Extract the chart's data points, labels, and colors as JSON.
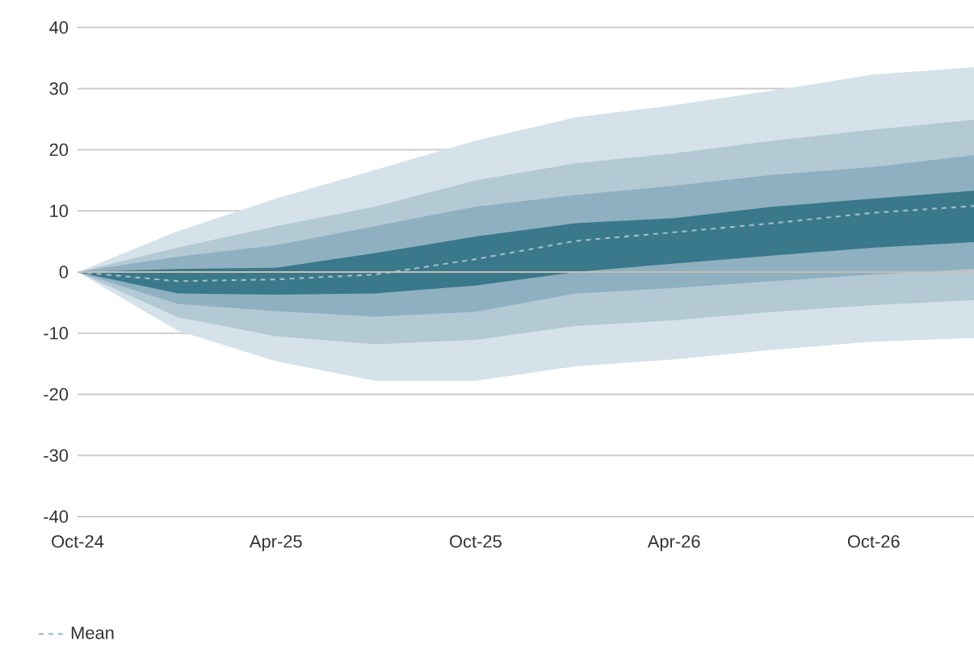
{
  "chart_data": {
    "type": "line",
    "x": [
      "2024-10-01",
      "2025-01-01",
      "2025-04-01",
      "2025-07-01",
      "2025-10-01",
      "2026-01-01",
      "2026-04-01",
      "2026-07-01",
      "2026-10-01",
      "2027-01-01"
    ],
    "series": [
      {
        "type": "area",
        "color": "#d5e2e9",
        "values": [
          null,
          null,
          null,
          null,
          null,
          null,
          null,
          null,
          null,
          null
        ],
        "upper": [
          0,
          6.7,
          12,
          16.7,
          21.5,
          25.3,
          27.3,
          29.7,
          32.3,
          33.5
        ],
        "lower": [
          0,
          -9.6,
          -14.6,
          -17.8,
          -17.8,
          -15.4,
          -14.3,
          -12.7,
          -11.4,
          -10.8
        ]
      },
      {
        "type": "area",
        "color": "#b3c9d4",
        "values": [
          null,
          null,
          null,
          null,
          null,
          null,
          null,
          null,
          null,
          null
        ],
        "upper": [
          0,
          4.0,
          7.5,
          10.7,
          15,
          17.8,
          19.4,
          21.5,
          23.3,
          24.9
        ],
        "lower": [
          0,
          -7.4,
          -10.5,
          -11.8,
          -11.1,
          -8.8,
          -7.9,
          -6.5,
          -5.4,
          -4.6
        ]
      },
      {
        "type": "area",
        "color": "#8fb0c0",
        "values": [
          null,
          null,
          null,
          null,
          null,
          null,
          null,
          null,
          null,
          null
        ],
        "upper": [
          0,
          2.5,
          4.4,
          7.5,
          10.7,
          12.6,
          14.1,
          15.9,
          17.2,
          19.1
        ],
        "lower": [
          0,
          -5.2,
          -6.4,
          -7.3,
          -6.5,
          -3.5,
          -2.6,
          -1.5,
          -0.4,
          0.5
        ]
      },
      {
        "type": "area",
        "color": "#3a788b",
        "values": [
          null,
          null,
          null,
          null,
          null,
          null,
          null,
          null,
          null,
          null
        ],
        "upper": [
          0,
          0.5,
          0.7,
          3.1,
          5.8,
          8,
          8.8,
          10.7,
          12,
          13.3
        ],
        "lower": [
          0,
          -3.5,
          -3.7,
          -3.5,
          -2.2,
          0,
          1.4,
          2.7,
          4,
          4.9
        ]
      },
      {
        "name": "Mean",
        "color": "#9dbccb",
        "line_style": "dashed",
        "values": [
          0,
          -1.5,
          -1.2,
          -0.4,
          2.1,
          5.1,
          6.5,
          8,
          9.7,
          10.8
        ]
      }
    ],
    "xlim": [
      "2024-10-01",
      "2027-01-01"
    ],
    "xticks": [
      {
        "value": "2024-10-01",
        "label": "Oct-24"
      },
      {
        "value": "2025-04-01",
        "label": "Apr-25"
      },
      {
        "value": "2025-10-01",
        "label": "Oct-25"
      },
      {
        "value": "2026-04-01",
        "label": "Apr-26"
      },
      {
        "value": "2026-10-01",
        "label": "Oct-26"
      }
    ],
    "ylim": [
      -40,
      40
    ],
    "yticks": [
      -40,
      -30,
      -20,
      -10,
      0,
      10,
      20,
      30,
      40
    ],
    "grid": "y",
    "ref_lines": [
      {
        "axis": "y",
        "value": 0,
        "color": "#c8beb4"
      }
    ],
    "legend": "bottom left"
  }
}
